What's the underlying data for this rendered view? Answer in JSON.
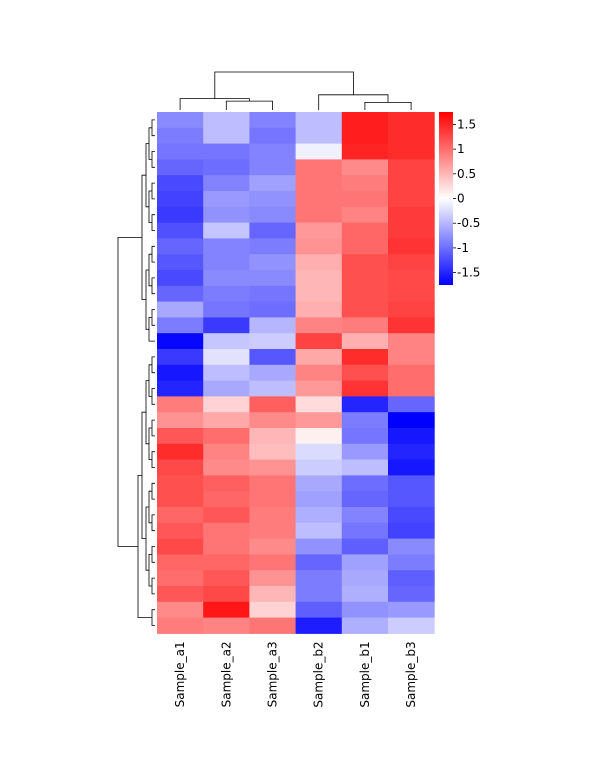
{
  "chart_data": {
    "type": "heatmap",
    "columns": [
      "Sample_a1",
      "Sample_a2",
      "Sample_a3",
      "Sample_b2",
      "Sample_b1",
      "Sample_b3"
    ],
    "values": [
      [
        -0.8,
        -0.45,
        -0.85,
        -0.45,
        1.55,
        1.45
      ],
      [
        -0.9,
        -0.45,
        -0.95,
        -0.45,
        1.55,
        1.45
      ],
      [
        -0.95,
        -0.95,
        -0.85,
        -0.1,
        1.5,
        1.45
      ],
      [
        -1.05,
        -1.0,
        -0.85,
        0.95,
        0.8,
        1.3
      ],
      [
        -1.25,
        -0.85,
        -0.65,
        0.95,
        0.9,
        1.3
      ],
      [
        -1.3,
        -0.7,
        -0.75,
        0.95,
        0.95,
        1.3
      ],
      [
        -1.35,
        -0.75,
        -0.8,
        0.95,
        0.85,
        1.35
      ],
      [
        -1.2,
        -0.4,
        -1.05,
        0.7,
        1.05,
        1.35
      ],
      [
        -1.05,
        -0.85,
        -0.9,
        0.75,
        1.05,
        1.4
      ],
      [
        -1.15,
        -0.85,
        -0.75,
        0.55,
        1.2,
        1.3
      ],
      [
        -1.25,
        -0.8,
        -0.8,
        0.5,
        1.2,
        1.25
      ],
      [
        -1.05,
        -0.9,
        -0.95,
        0.5,
        1.2,
        1.25
      ],
      [
        -0.6,
        -0.95,
        -1.0,
        0.55,
        1.2,
        1.3
      ],
      [
        -0.9,
        -1.35,
        -0.5,
        0.85,
        0.9,
        1.4
      ],
      [
        -1.7,
        -0.4,
        -0.35,
        1.3,
        0.55,
        0.85
      ],
      [
        -1.35,
        -0.2,
        -1.15,
        0.6,
        1.45,
        0.85
      ],
      [
        -1.6,
        -0.45,
        -0.6,
        0.85,
        1.2,
        1.0
      ],
      [
        -1.5,
        -0.6,
        -0.45,
        0.7,
        1.4,
        1.0
      ],
      [
        0.9,
        0.3,
        1.1,
        0.25,
        -1.5,
        -1.05
      ],
      [
        0.75,
        0.6,
        0.8,
        0.7,
        -0.9,
        -1.75
      ],
      [
        1.15,
        1.0,
        0.5,
        0.1,
        -0.95,
        -1.6
      ],
      [
        1.45,
        0.85,
        0.45,
        -0.25,
        -0.7,
        -1.5
      ],
      [
        1.25,
        0.8,
        0.75,
        -0.35,
        -0.45,
        -1.6
      ],
      [
        1.2,
        1.1,
        0.95,
        -0.6,
        -1.0,
        -1.15
      ],
      [
        1.2,
        1.05,
        0.95,
        -0.65,
        -1.05,
        -1.15
      ],
      [
        1.05,
        1.15,
        0.9,
        -0.55,
        -0.85,
        -1.25
      ],
      [
        1.15,
        0.95,
        0.9,
        -0.45,
        -0.95,
        -1.3
      ],
      [
        1.25,
        0.95,
        0.8,
        -0.75,
        -1.1,
        -0.8
      ],
      [
        1.05,
        1.05,
        0.95,
        -1.05,
        -0.65,
        -0.9
      ],
      [
        1.0,
        1.15,
        0.75,
        -0.9,
        -0.6,
        -1.1
      ],
      [
        1.15,
        1.25,
        0.5,
        -0.9,
        -0.55,
        -1.05
      ],
      [
        0.8,
        1.6,
        0.3,
        -1.1,
        -0.75,
        -0.7
      ],
      [
        0.9,
        0.85,
        0.95,
        -1.55,
        -0.55,
        -0.35
      ]
    ],
    "colorbar": {
      "range": [
        -1.75,
        1.75
      ],
      "ticks": [
        1.5,
        1,
        0.5,
        0,
        -0.5,
        -1,
        -1.5
      ],
      "tick_labels": [
        "1.5",
        "1",
        "0.5",
        "0",
        "-0.5",
        "-1",
        "-1.5"
      ],
      "cmap": [
        "#0000ff",
        "#ffffff",
        "#ff0000"
      ]
    },
    "column_dendrogram": [
      {
        "type": "leaf",
        "id": "c0"
      },
      {
        "type": "leaf",
        "id": "c1"
      },
      {
        "type": "leaf",
        "id": "c2"
      },
      {
        "type": "leaf",
        "id": "c3"
      },
      {
        "type": "leaf",
        "id": "c4"
      },
      {
        "type": "leaf",
        "id": "c5"
      },
      {
        "join": [
          "c1",
          "c2"
        ],
        "height": 0.35,
        "id": "c12"
      },
      {
        "join": [
          "c0",
          "c12"
        ],
        "height": 0.45,
        "id": "c012"
      },
      {
        "join": [
          "c4",
          "c5"
        ],
        "height": 0.3,
        "id": "c45"
      },
      {
        "join": [
          "c3",
          "c45"
        ],
        "height": 0.6,
        "id": "c345"
      },
      {
        "join": [
          "c012",
          "c345"
        ],
        "height": 1.5,
        "id": "root"
      }
    ],
    "row_dendrogram": [
      {
        "join": [
          0,
          1
        ],
        "height": 0.04
      },
      {
        "join": [
          2,
          3
        ],
        "height": 0.04
      },
      {
        "join": [
          4,
          5
        ],
        "height": 0.04
      },
      {
        "join": [
          6,
          7
        ],
        "height": 0.04
      },
      {
        "join": [
          8,
          9
        ],
        "height": 0.04
      },
      {
        "join": [
          10,
          11
        ],
        "height": 0.04
      },
      {
        "join": [
          12,
          13
        ],
        "height": 0.04
      },
      {
        "join": [
          14,
          15
        ],
        "height": 0.04
      },
      {
        "join": [
          16,
          17
        ],
        "height": 0.04
      },
      {
        "join": [
          18,
          19
        ],
        "height": 0.04
      },
      {
        "join": [
          20,
          21
        ],
        "height": 0.04
      },
      {
        "join": [
          22,
          23
        ],
        "height": 0.04
      },
      {
        "join": [
          24,
          25
        ],
        "height": 0.04
      },
      {
        "join": [
          26,
          27
        ],
        "height": 0.04
      },
      {
        "join": [
          28,
          29
        ],
        "height": 0.04
      },
      {
        "join": [
          30,
          31
        ],
        "height": 0.04
      },
      {
        "join": [
          32,
          30
        ],
        "height": 0.08
      }
    ]
  }
}
